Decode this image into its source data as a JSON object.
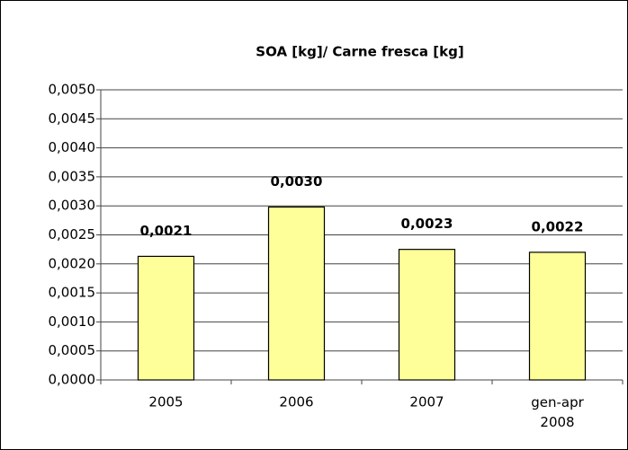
{
  "chart_data": {
    "type": "bar",
    "title": "SOA [kg]/ Carne fresca [kg]",
    "categories": [
      "2005",
      "2006",
      "2007",
      "gen-apr 2008"
    ],
    "values": [
      0.00213,
      0.00298,
      0.00225,
      0.0022
    ],
    "value_labels": [
      "0,0021",
      "0,0030",
      "0,0023",
      "0,0022"
    ],
    "color": "#ffff99",
    "ylim": [
      0,
      0.005
    ],
    "yticks": [
      {
        "value": 0,
        "label": "0,0000"
      },
      {
        "value": 0.0005,
        "label": "0,0005"
      },
      {
        "value": 0.001,
        "label": "0,0010"
      },
      {
        "value": 0.0015,
        "label": "0,0015"
      },
      {
        "value": 0.002,
        "label": "0,0020"
      },
      {
        "value": 0.0025,
        "label": "0,0025"
      },
      {
        "value": 0.003,
        "label": "0,0030"
      },
      {
        "value": 0.0035,
        "label": "0,0035"
      },
      {
        "value": 0.004,
        "label": "0,0040"
      },
      {
        "value": 0.0045,
        "label": "0,0045"
      },
      {
        "value": 0.005,
        "label": "0,0050"
      }
    ],
    "grid": true
  }
}
